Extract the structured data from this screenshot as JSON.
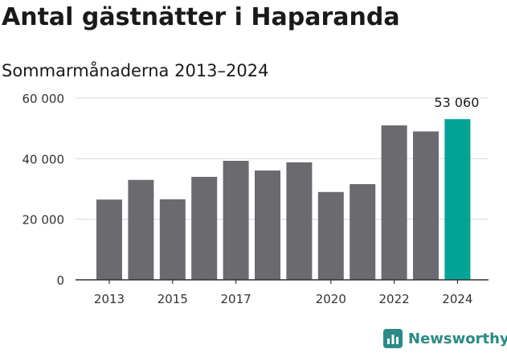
{
  "title": "Antal gästnätter i Haparanda",
  "subtitle": "Sommarmånaderna 2013–2024",
  "brand": "Newsworthy",
  "colors": {
    "bar": "#6b6a6f",
    "highlight": "#00a497",
    "grid": "#d9d9d9",
    "axis": "#333333",
    "brand": "#2a8a85"
  },
  "chart_data": {
    "type": "bar",
    "categories": [
      "2013",
      "2014",
      "2015",
      "2016",
      "2017",
      "2018",
      "2019",
      "2020",
      "2021",
      "2022",
      "2023",
      "2024"
    ],
    "values": [
      26500,
      33000,
      26600,
      34000,
      39300,
      36100,
      38800,
      29000,
      31600,
      51000,
      49000,
      53060
    ],
    "x_tick_labels": [
      "2013",
      "2015",
      "2017",
      "2020",
      "2022",
      "2024"
    ],
    "y_ticks": [
      0,
      20000,
      40000,
      60000
    ],
    "y_tick_labels": [
      "0",
      "20 000",
      "40 000",
      "60 000"
    ],
    "ylim": [
      0,
      60000
    ],
    "highlight_index": 11,
    "data_labels": [
      {
        "index": 11,
        "text": "53 060"
      }
    ],
    "xlabel": "",
    "ylabel": "",
    "grid": true,
    "legend": "none"
  }
}
